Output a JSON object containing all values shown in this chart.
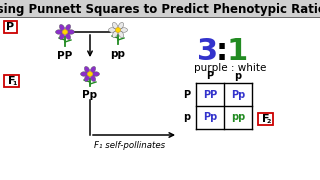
{
  "title": "Using Punnett Squares to Predict Phenotypic Ratios",
  "title_fontsize": 8.5,
  "bg_color": "#ffffff",
  "title_bg": "#d0d0d0",
  "ratio_3": "3",
  "ratio_colon": ":",
  "ratio_1": "1",
  "ratio_color_3": "#3333cc",
  "ratio_color_1": "#228B22",
  "ratio_fontsize": 22,
  "ratio_label": "purple : white",
  "ratio_label_fontsize": 7.5,
  "box_color": "#cc0000",
  "p_label": "P",
  "f1_label": "F",
  "f2_label": "F",
  "pp_parent_label": "PP",
  "pp_child_label": "pp",
  "f1_plant_label": "Pp",
  "f1_self_text": "F₁ self-pollinates",
  "punnett_col_headers": [
    "P",
    "p"
  ],
  "punnett_row_headers": [
    "P",
    "p"
  ],
  "punnett_cells": [
    [
      "PP",
      "Pp"
    ],
    [
      "Pp",
      "pp"
    ]
  ],
  "punnett_cell_colors": [
    [
      "#3333cc",
      "#3333cc"
    ],
    [
      "#3333cc",
      "#228B22"
    ]
  ],
  "punnett_header_color": "#000000",
  "punnett_cell_fontsize": 7,
  "punnett_header_fontsize": 7,
  "label_fontsize": 7.5,
  "gen_label_fontsize": 8
}
